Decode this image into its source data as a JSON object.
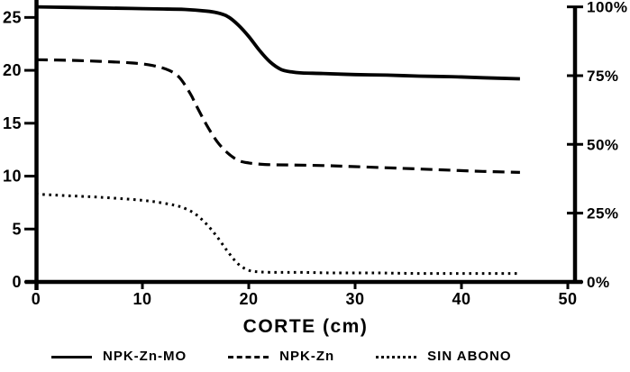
{
  "figure": {
    "background": "#ffffff",
    "ink": "#000000"
  },
  "axis_label_x": "CORTE (cm)",
  "legend": {
    "items": [
      {
        "label": "NPK-Zn-MO",
        "style": "solid"
      },
      {
        "label": "NPK-Zn",
        "style": "dashed"
      },
      {
        "label": "SIN ABONO",
        "style": "dotted"
      }
    ]
  },
  "chart_data": {
    "type": "line",
    "title": "",
    "xlabel": "CORTE (cm)",
    "grid": false,
    "legend_position": "bottom",
    "x_axis": {
      "min": 0,
      "max": 50,
      "ticks": [
        0,
        10,
        20,
        30,
        40,
        50
      ]
    },
    "y_axis_left": {
      "min": 0,
      "max": 26,
      "ticks": [
        0,
        5,
        10,
        15,
        20,
        25
      ]
    },
    "y_axis_right": {
      "unit": "%",
      "ticks": [
        0,
        25,
        50,
        75,
        100
      ],
      "tick_labels": [
        "0%",
        "25%",
        "50%",
        "75%",
        "100%"
      ],
      "percent_100_equals_left_value": 26
    },
    "series": [
      {
        "name": "NPK-Zn-MO",
        "line_style": "solid",
        "x": [
          0,
          3,
          6,
          9,
          12,
          14,
          16,
          17,
          18,
          19,
          20,
          21,
          22,
          23,
          24,
          25,
          27,
          30,
          33,
          36,
          39,
          42,
          45.5
        ],
        "y": [
          26.0,
          25.95,
          25.9,
          25.85,
          25.8,
          25.75,
          25.6,
          25.45,
          25.1,
          24.3,
          23.2,
          21.9,
          20.8,
          20.1,
          19.85,
          19.75,
          19.7,
          19.6,
          19.55,
          19.45,
          19.4,
          19.3,
          19.2
        ]
      },
      {
        "name": "NPK-Zn",
        "line_style": "dashed",
        "x": [
          0,
          3,
          6,
          9,
          11,
          12.5,
          13.5,
          14.5,
          15,
          16,
          17,
          18,
          19,
          20,
          21.5,
          24,
          27,
          30,
          34,
          38,
          42,
          45.5
        ],
        "y": [
          21.0,
          20.95,
          20.85,
          20.7,
          20.45,
          20.0,
          19.3,
          17.8,
          16.8,
          14.9,
          13.3,
          12.2,
          11.5,
          11.25,
          11.1,
          11.05,
          11.0,
          10.9,
          10.75,
          10.6,
          10.45,
          10.35
        ]
      },
      {
        "name": "SIN ABONO",
        "line_style": "dotted",
        "x": [
          0,
          3,
          6,
          9,
          11,
          13,
          14,
          15,
          16,
          17,
          18,
          19,
          20,
          21,
          22.5,
          25,
          28,
          32,
          36,
          40,
          45.5
        ],
        "y": [
          8.3,
          8.15,
          8.0,
          7.8,
          7.6,
          7.25,
          6.95,
          6.4,
          5.5,
          4.3,
          2.9,
          1.7,
          1.1,
          0.95,
          0.9,
          0.9,
          0.85,
          0.85,
          0.8,
          0.8,
          0.8
        ]
      }
    ]
  }
}
